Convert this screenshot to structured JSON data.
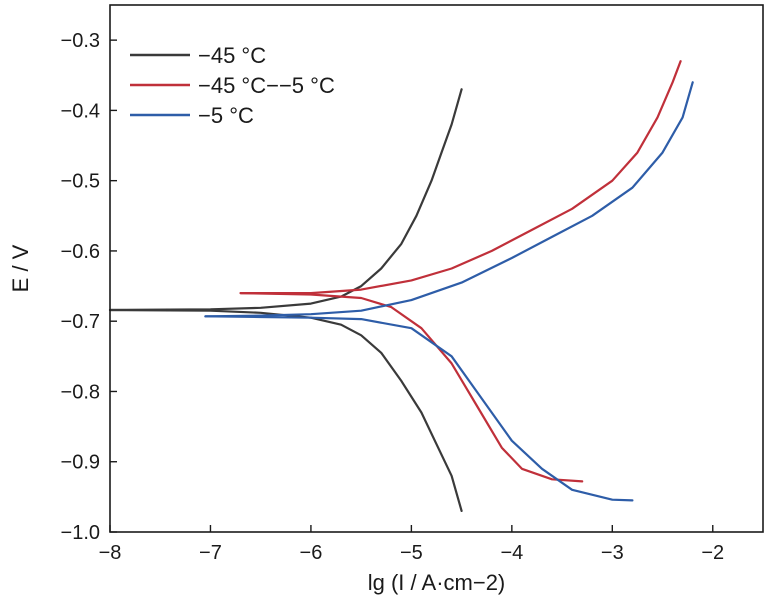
{
  "chart_data": {
    "type": "line",
    "title": "",
    "xlabel": "lg (I / A·cm−2)",
    "ylabel": "E / V",
    "xlim": [
      -8,
      -1.5
    ],
    "ylim": [
      -1.0,
      -0.25
    ],
    "x_ticks": [
      -8,
      -7,
      -6,
      -5,
      -4,
      -3,
      -2
    ],
    "x_tick_labels": [
      "−8",
      "−7",
      "−6",
      "−5",
      "−4",
      "−3",
      "−2"
    ],
    "y_ticks": [
      -1.0,
      -0.9,
      -0.8,
      -0.7,
      -0.6,
      -0.5,
      -0.4,
      -0.3
    ],
    "y_tick_labels": [
      "−1.0",
      "−0.9",
      "−0.8",
      "−0.7",
      "−0.6",
      "−0.5",
      "−0.4",
      "−0.3"
    ],
    "grid": false,
    "legend_position": "top-left",
    "series": [
      {
        "name": "−45 °C",
        "color": "#3a3a3a",
        "anodic": [
          [
            -8.0,
            -0.684
          ],
          [
            -7.0,
            -0.683
          ],
          [
            -6.5,
            -0.681
          ],
          [
            -6.0,
            -0.675
          ],
          [
            -5.7,
            -0.665
          ],
          [
            -5.5,
            -0.65
          ],
          [
            -5.3,
            -0.625
          ],
          [
            -5.1,
            -0.59
          ],
          [
            -4.95,
            -0.55
          ],
          [
            -4.8,
            -0.5
          ],
          [
            -4.7,
            -0.46
          ],
          [
            -4.6,
            -0.42
          ],
          [
            -4.5,
            -0.37
          ]
        ],
        "cathodic": [
          [
            -8.0,
            -0.684
          ],
          [
            -7.0,
            -0.685
          ],
          [
            -6.5,
            -0.688
          ],
          [
            -6.0,
            -0.695
          ],
          [
            -5.7,
            -0.705
          ],
          [
            -5.5,
            -0.72
          ],
          [
            -5.3,
            -0.745
          ],
          [
            -5.1,
            -0.785
          ],
          [
            -4.9,
            -0.83
          ],
          [
            -4.75,
            -0.875
          ],
          [
            -4.6,
            -0.92
          ],
          [
            -4.5,
            -0.97
          ]
        ]
      },
      {
        "name": "−45 °C−−5 °C",
        "color": "#c0303a",
        "anodic": [
          [
            -6.7,
            -0.66
          ],
          [
            -6.0,
            -0.66
          ],
          [
            -5.5,
            -0.655
          ],
          [
            -5.0,
            -0.642
          ],
          [
            -4.6,
            -0.625
          ],
          [
            -4.2,
            -0.6
          ],
          [
            -3.8,
            -0.57
          ],
          [
            -3.4,
            -0.54
          ],
          [
            -3.0,
            -0.5
          ],
          [
            -2.75,
            -0.46
          ],
          [
            -2.55,
            -0.41
          ],
          [
            -2.4,
            -0.36
          ],
          [
            -2.32,
            -0.33
          ]
        ],
        "cathodic": [
          [
            -6.7,
            -0.66
          ],
          [
            -6.0,
            -0.662
          ],
          [
            -5.5,
            -0.667
          ],
          [
            -5.2,
            -0.68
          ],
          [
            -4.9,
            -0.71
          ],
          [
            -4.6,
            -0.76
          ],
          [
            -4.35,
            -0.82
          ],
          [
            -4.1,
            -0.88
          ],
          [
            -3.9,
            -0.91
          ],
          [
            -3.6,
            -0.925
          ],
          [
            -3.3,
            -0.928
          ]
        ]
      },
      {
        "name": "−5 °C",
        "color": "#2e5da8",
        "anodic": [
          [
            -7.05,
            -0.693
          ],
          [
            -6.5,
            -0.692
          ],
          [
            -6.0,
            -0.69
          ],
          [
            -5.5,
            -0.685
          ],
          [
            -5.0,
            -0.67
          ],
          [
            -4.5,
            -0.645
          ],
          [
            -4.0,
            -0.61
          ],
          [
            -3.6,
            -0.58
          ],
          [
            -3.2,
            -0.55
          ],
          [
            -2.8,
            -0.51
          ],
          [
            -2.5,
            -0.46
          ],
          [
            -2.3,
            -0.41
          ],
          [
            -2.2,
            -0.36
          ]
        ],
        "cathodic": [
          [
            -7.05,
            -0.693
          ],
          [
            -6.5,
            -0.694
          ],
          [
            -6.0,
            -0.695
          ],
          [
            -5.5,
            -0.697
          ],
          [
            -5.0,
            -0.71
          ],
          [
            -4.6,
            -0.75
          ],
          [
            -4.3,
            -0.81
          ],
          [
            -4.0,
            -0.87
          ],
          [
            -3.7,
            -0.91
          ],
          [
            -3.4,
            -0.94
          ],
          [
            -3.0,
            -0.954
          ],
          [
            -2.8,
            -0.955
          ]
        ]
      }
    ]
  }
}
